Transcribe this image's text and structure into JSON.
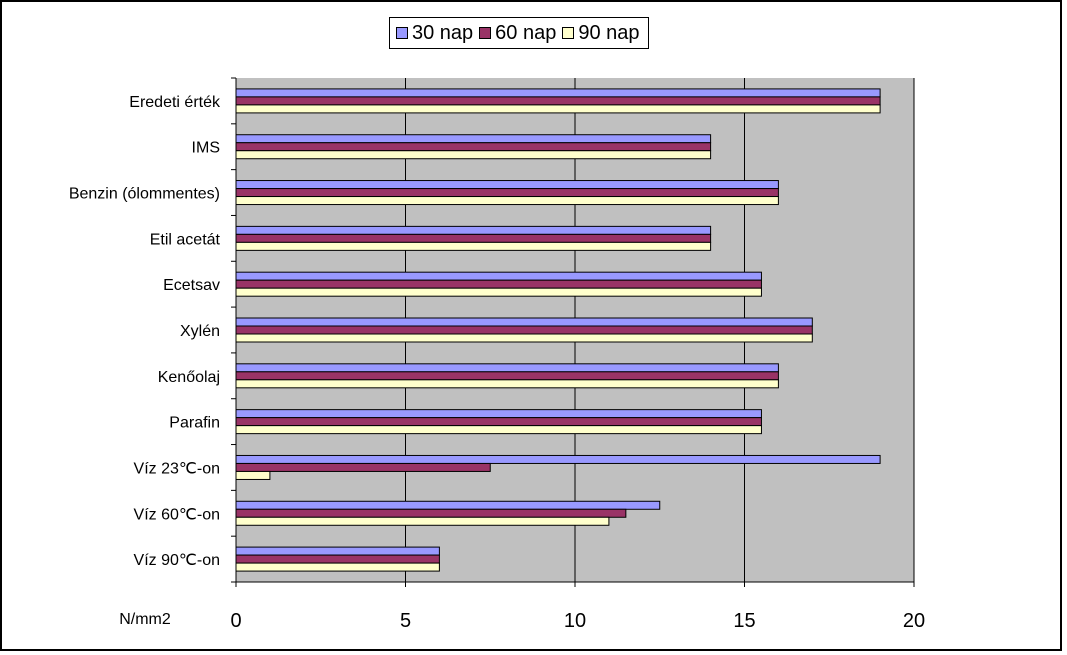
{
  "chart_data": {
    "type": "bar",
    "orientation": "horizontal",
    "categories": [
      "Eredeti érték",
      "IMS",
      "Benzin (ólommentes)",
      "Etil acetát",
      "Ecetsav",
      "Xylén",
      "Kenőolaj",
      "Parafin",
      "Víz 23℃-on",
      "Víz 60℃-on",
      "Víz 90℃-on"
    ],
    "series": [
      {
        "name": "30 nap",
        "color": "#9999ff",
        "values": [
          19,
          14,
          16,
          14,
          15.5,
          17,
          16,
          15.5,
          19,
          12.5,
          6
        ]
      },
      {
        "name": "60 nap",
        "color": "#993366",
        "values": [
          19,
          14,
          16,
          14,
          15.5,
          17,
          16,
          15.5,
          7.5,
          11.5,
          6
        ]
      },
      {
        "name": "90 nap",
        "color": "#ffffcc",
        "values": [
          19,
          14,
          16,
          14,
          15.5,
          17,
          16,
          15.5,
          1,
          11,
          6
        ]
      }
    ],
    "xlim": [
      0,
      20
    ],
    "xticks": [
      "0",
      "5",
      "10",
      "15",
      "20"
    ],
    "xlabel": "N/mm2",
    "legend_position": "top",
    "grid": true,
    "plot_background": "#c0c0c0"
  }
}
